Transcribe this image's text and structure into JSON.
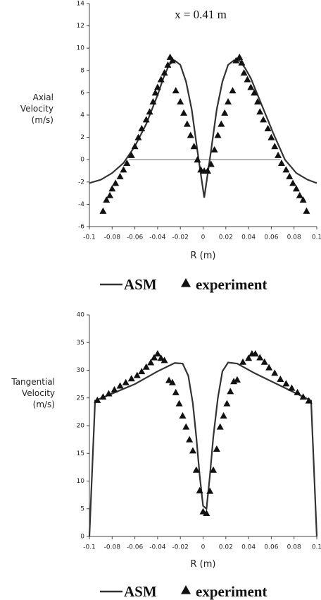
{
  "chart_data": [
    {
      "type": "line",
      "title": "x = 0.41 m",
      "ylabel": [
        "Axial",
        "Velocity",
        "(m/s)"
      ],
      "xlabel": "R (m)",
      "xlim": [
        -0.1,
        0.1
      ],
      "xticks": [
        -0.1,
        -0.08,
        -0.06,
        -0.04,
        -0.02,
        0,
        0.02,
        0.04,
        0.06,
        0.08,
        0.1
      ],
      "ylim": [
        -6,
        14
      ],
      "yticks": [
        -6,
        -4,
        -2,
        0,
        2,
        4,
        6,
        8,
        10,
        12,
        14
      ],
      "reference_line": {
        "y": 0,
        "x": [
          -0.065,
          0.068
        ],
        "color": "#999999"
      },
      "series": [
        {
          "name": "ASM",
          "type": "line",
          "color": "#333333",
          "x": [
            -0.1,
            -0.09,
            -0.08,
            -0.07,
            -0.06,
            -0.05,
            -0.04,
            -0.035,
            -0.03,
            -0.025,
            -0.02,
            -0.015,
            -0.01,
            -0.005,
            0.001,
            0.007,
            0.012,
            0.017,
            0.022,
            0.027,
            0.032,
            0.037,
            0.042,
            0.052,
            0.062,
            0.072,
            0.082,
            0.092,
            0.1
          ],
          "values": [
            -2.1,
            -1.8,
            -1.2,
            -0.3,
            1.2,
            3.2,
            5.8,
            7.3,
            8.5,
            8.9,
            8.5,
            7,
            4.5,
            0.8,
            -3.4,
            0.8,
            4.5,
            7,
            8.5,
            8.9,
            8.9,
            8.2,
            7.3,
            4.8,
            2.3,
            0,
            -1.2,
            -1.8,
            -2.1
          ]
        },
        {
          "name": "experiment",
          "type": "scatter",
          "color": "#111111",
          "x": [
            -0.088,
            -0.085,
            -0.082,
            -0.08,
            -0.077,
            -0.073,
            -0.07,
            -0.067,
            -0.063,
            -0.06,
            -0.057,
            -0.054,
            -0.05,
            -0.047,
            -0.044,
            -0.042,
            -0.04,
            -0.037,
            -0.034,
            -0.031,
            -0.029,
            -0.027,
            -0.024,
            -0.02,
            -0.017,
            -0.014,
            -0.011,
            -0.008,
            -0.005,
            -0.002,
            0.001,
            0.004,
            0.007,
            0.01,
            0.013,
            0.016,
            0.019,
            0.022,
            0.026,
            0.029,
            0.032,
            0.034,
            0.036,
            0.039,
            0.042,
            0.045,
            0.048,
            0.05,
            0.053,
            0.057,
            0.06,
            0.063,
            0.066,
            0.069,
            0.073,
            0.076,
            0.079,
            0.082,
            0.085,
            0.088,
            0.091
          ],
          "values": [
            -4.6,
            -3.6,
            -3.2,
            -2.6,
            -2.1,
            -1.5,
            -0.9,
            -0.3,
            0.4,
            1.2,
            2,
            2.8,
            3.6,
            4.3,
            5.2,
            6,
            6.5,
            7.2,
            7.8,
            8.5,
            9.2,
            8.9,
            6.2,
            5.2,
            4.2,
            3.2,
            2.2,
            1.2,
            0,
            -0.9,
            -1,
            -1,
            -0.4,
            0.9,
            2.2,
            3.2,
            4.2,
            5.2,
            6.2,
            8.9,
            9.2,
            8.7,
            7.8,
            7.2,
            6.5,
            6,
            5.2,
            4.3,
            3.6,
            2.8,
            2,
            1.2,
            0.4,
            -0.3,
            -0.9,
            -1.5,
            -2.1,
            -2.6,
            -3.2,
            -3.6,
            -4.6
          ]
        }
      ]
    },
    {
      "type": "line",
      "ylabel": [
        "Tangential",
        "Velocity",
        "(m/s)"
      ],
      "xlabel": "R (m)",
      "xlim": [
        -0.1,
        0.1
      ],
      "xticks": [
        -0.1,
        -0.08,
        -0.06,
        -0.04,
        -0.02,
        0,
        0.02,
        0.04,
        0.06,
        0.08,
        0.1
      ],
      "ylim": [
        0,
        40
      ],
      "yticks": [
        0,
        5,
        10,
        15,
        20,
        25,
        30,
        35,
        40
      ],
      "series": [
        {
          "name": "ASM",
          "type": "line",
          "color": "#333333",
          "x": [
            -0.1,
            -0.095,
            -0.06,
            -0.04,
            -0.025,
            -0.018,
            -0.013,
            -0.009,
            -0.006,
            -0.003,
            0,
            0.003,
            0.006,
            0.009,
            0.013,
            0.017,
            0.022,
            0.03,
            0.045,
            0.07,
            0.095,
            0.1
          ],
          "values": [
            0,
            24.5,
            27.5,
            29.8,
            31.3,
            31.2,
            29,
            24,
            18,
            11,
            5.5,
            5,
            11,
            18,
            25,
            29.8,
            31.4,
            31.2,
            29.5,
            27,
            24.5,
            0
          ]
        },
        {
          "name": "experiment",
          "type": "scatter",
          "color": "#111111",
          "x": [
            -0.093,
            -0.088,
            -0.083,
            -0.078,
            -0.073,
            -0.068,
            -0.063,
            -0.058,
            -0.054,
            -0.05,
            -0.046,
            -0.043,
            -0.04,
            -0.037,
            -0.034,
            -0.03,
            -0.027,
            -0.024,
            -0.021,
            -0.018,
            -0.015,
            -0.012,
            -0.009,
            -0.006,
            -0.003,
            0,
            0.003,
            0.006,
            0.009,
            0.012,
            0.015,
            0.018,
            0.021,
            0.024,
            0.027,
            0.03,
            0.035,
            0.04,
            0.043,
            0.046,
            0.05,
            0.054,
            0.058,
            0.063,
            0.068,
            0.073,
            0.078,
            0.083,
            0.088,
            0.093
          ],
          "values": [
            24.6,
            25.2,
            25.8,
            26.5,
            27.2,
            27.8,
            28.5,
            29.1,
            29.8,
            30.6,
            31.4,
            32.3,
            33,
            32.2,
            31.8,
            28.2,
            27.8,
            26,
            24,
            21.8,
            19.8,
            17.5,
            15.5,
            12,
            8.3,
            4.5,
            4.2,
            8.2,
            12,
            15.8,
            19.8,
            21.8,
            24,
            26.2,
            28,
            28.3,
            31.5,
            32.2,
            33,
            33,
            32.3,
            31.5,
            30.5,
            29.5,
            28.4,
            27.6,
            26.8,
            26,
            25.2,
            24.5
          ]
        }
      ]
    }
  ]
}
